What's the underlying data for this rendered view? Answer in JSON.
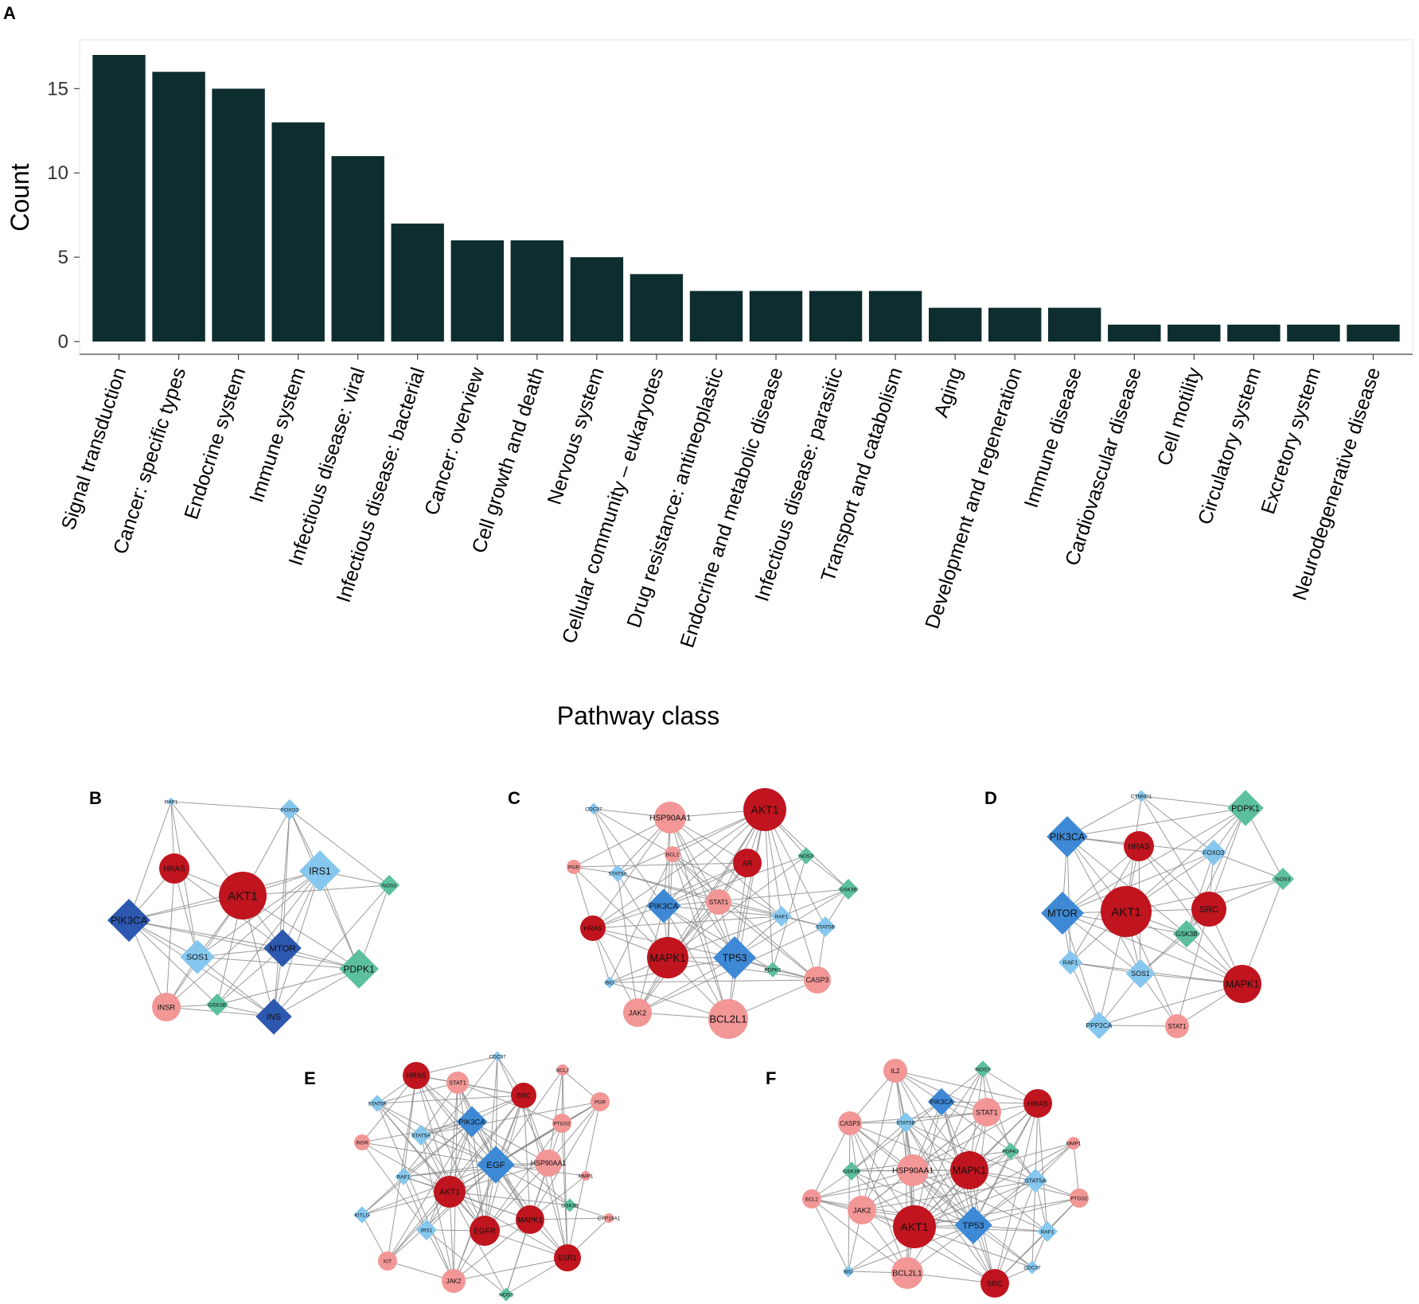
{
  "chart_data": {
    "type": "bar",
    "panel_label": "A",
    "xlabel": "Pathway class",
    "ylabel": "Count",
    "ylim": [
      0,
      17.9
    ],
    "yticks": [
      0,
      5,
      10,
      15
    ],
    "bar_color": "#0d2d2f",
    "categories": [
      "Signal transduction",
      "Cancer: specific types",
      "Endocrine system",
      "Immune system",
      "Infectious disease: viral",
      "Infectious disease: bacterial",
      "Cancer: overview",
      "Cell growth and death",
      "Nervous system",
      "Cellular community – eukaryotes",
      "Drug resistance: antineoplastic",
      "Endocrine and metabolic disease",
      "Infectious disease: parasitic",
      "Transport and catabolism",
      "Aging",
      "Development and regeneration",
      "Immune disease",
      "Cardiovascular disease",
      "Cell motility",
      "Circulatory system",
      "Excretory system",
      "Neurodegenerative disease"
    ],
    "values": [
      17,
      16,
      15,
      13,
      11,
      7,
      6,
      6,
      5,
      4,
      3,
      3,
      3,
      3,
      2,
      2,
      2,
      1,
      1,
      1,
      1,
      1
    ]
  },
  "colors": {
    "dark_red": "#c0141e",
    "light_red": "#f29696",
    "dark_blue": "#2d58b0",
    "mid_blue": "#3d89d6",
    "light_blue": "#85c7ee",
    "green": "#5cc09e",
    "edge": "#8a8a8a"
  },
  "networks": [
    {
      "label": "B",
      "nodes": [
        {
          "id": "RAF1",
          "shape": "diamond",
          "color": "light_blue",
          "size": 5
        },
        {
          "id": "FOXO3",
          "shape": "diamond",
          "color": "light_blue",
          "size": 12
        },
        {
          "id": "HRAS",
          "shape": "circle",
          "color": "dark_red",
          "size": 19
        },
        {
          "id": "AKT1",
          "shape": "circle",
          "color": "dark_red",
          "size": 30
        },
        {
          "id": "IRS1",
          "shape": "diamond",
          "color": "light_blue",
          "size": 24
        },
        {
          "id": "NOS3",
          "shape": "diamond",
          "color": "green",
          "size": 12
        },
        {
          "id": "PIK3CA",
          "shape": "diamond",
          "color": "dark_blue",
          "size": 25
        },
        {
          "id": "SOS1",
          "shape": "diamond",
          "color": "light_blue",
          "size": 20
        },
        {
          "id": "MTOR",
          "shape": "diamond",
          "color": "dark_blue",
          "size": 22
        },
        {
          "id": "PDPK1",
          "shape": "diamond",
          "color": "green",
          "size": 23
        },
        {
          "id": "INSR",
          "shape": "circle",
          "color": "light_red",
          "size": 18
        },
        {
          "id": "GSK3B",
          "shape": "diamond",
          "color": "green",
          "size": 13
        },
        {
          "id": "INS",
          "shape": "diamond",
          "color": "dark_blue",
          "size": 21
        }
      ]
    },
    {
      "label": "C",
      "nodes": [
        {
          "id": "CDC37",
          "shape": "diamond",
          "color": "light_blue",
          "size": 7
        },
        {
          "id": "HSP90AA1",
          "shape": "circle",
          "color": "light_red",
          "size": 20
        },
        {
          "id": "AKT1",
          "shape": "circle",
          "color": "dark_red",
          "size": 27
        },
        {
          "id": "BCL2",
          "shape": "circle",
          "color": "light_red",
          "size": 10
        },
        {
          "id": "AR",
          "shape": "circle",
          "color": "dark_red",
          "size": 18
        },
        {
          "id": "NOS3",
          "shape": "diamond",
          "color": "green",
          "size": 10
        },
        {
          "id": "PGR",
          "shape": "circle",
          "color": "light_red",
          "size": 9
        },
        {
          "id": "STAT5A",
          "shape": "diamond",
          "color": "light_blue",
          "size": 10
        },
        {
          "id": "GSK3B",
          "shape": "diamond",
          "color": "green",
          "size": 12
        },
        {
          "id": "PIK3CA",
          "shape": "diamond",
          "color": "mid_blue",
          "size": 20
        },
        {
          "id": "STAT1",
          "shape": "circle",
          "color": "light_red",
          "size": 16
        },
        {
          "id": "RAF1",
          "shape": "diamond",
          "color": "light_blue",
          "size": 12
        },
        {
          "id": "STAT5B",
          "shape": "diamond",
          "color": "light_blue",
          "size": 12
        },
        {
          "id": "HRAS",
          "shape": "circle",
          "color": "dark_red",
          "size": 16
        },
        {
          "id": "MAPK1",
          "shape": "circle",
          "color": "dark_red",
          "size": 26
        },
        {
          "id": "TP53",
          "shape": "diamond",
          "color": "mid_blue",
          "size": 25
        },
        {
          "id": "PDPK1",
          "shape": "diamond",
          "color": "green",
          "size": 9
        },
        {
          "id": "BID",
          "shape": "diamond",
          "color": "light_blue",
          "size": 7
        },
        {
          "id": "CASP3",
          "shape": "circle",
          "color": "light_red",
          "size": 17
        },
        {
          "id": "JAK2",
          "shape": "circle",
          "color": "light_red",
          "size": 18
        },
        {
          "id": "BCL2L1",
          "shape": "circle",
          "color": "light_red",
          "size": 25
        }
      ]
    },
    {
      "label": "D",
      "nodes": [
        {
          "id": "CTNND1",
          "shape": "diamond",
          "color": "light_blue",
          "size": 7
        },
        {
          "id": "PDPK1",
          "shape": "diamond",
          "color": "green",
          "size": 21
        },
        {
          "id": "PIK3CA",
          "shape": "diamond",
          "color": "mid_blue",
          "size": 24
        },
        {
          "id": "HRAS",
          "shape": "circle",
          "color": "dark_red",
          "size": 19
        },
        {
          "id": "FOXO3",
          "shape": "diamond",
          "color": "light_blue",
          "size": 15
        },
        {
          "id": "NOS3",
          "shape": "diamond",
          "color": "green",
          "size": 13
        },
        {
          "id": "MTOR",
          "shape": "diamond",
          "color": "mid_blue",
          "size": 25
        },
        {
          "id": "AKT1",
          "shape": "circle",
          "color": "dark_red",
          "size": 32
        },
        {
          "id": "SRC",
          "shape": "circle",
          "color": "dark_red",
          "size": 22
        },
        {
          "id": "GSK3B",
          "shape": "diamond",
          "color": "green",
          "size": 16
        },
        {
          "id": "RAF1",
          "shape": "diamond",
          "color": "light_blue",
          "size": 14
        },
        {
          "id": "SOS1",
          "shape": "diamond",
          "color": "light_blue",
          "size": 17
        },
        {
          "id": "MAPK1",
          "shape": "circle",
          "color": "dark_red",
          "size": 24
        },
        {
          "id": "PPP2CA",
          "shape": "diamond",
          "color": "light_blue",
          "size": 16
        },
        {
          "id": "STAT1",
          "shape": "circle",
          "color": "light_red",
          "size": 15
        }
      ]
    },
    {
      "label": "E",
      "nodes": [
        {
          "id": "CDC37",
          "shape": "diamond",
          "color": "light_blue",
          "size": 6
        },
        {
          "id": "HRAS",
          "shape": "circle",
          "color": "dark_red",
          "size": 17
        },
        {
          "id": "STAT1",
          "shape": "circle",
          "color": "light_red",
          "size": 14
        },
        {
          "id": "SRC",
          "shape": "circle",
          "color": "dark_red",
          "size": 16
        },
        {
          "id": "BCL2",
          "shape": "circle",
          "color": "light_red",
          "size": 7
        },
        {
          "id": "STAT5B",
          "shape": "diamond",
          "color": "light_blue",
          "size": 10
        },
        {
          "id": "PGR",
          "shape": "circle",
          "color": "light_red",
          "size": 12
        },
        {
          "id": "STAT5A",
          "shape": "diamond",
          "color": "light_blue",
          "size": 12
        },
        {
          "id": "PIK3CA",
          "shape": "diamond",
          "color": "mid_blue",
          "size": 18
        },
        {
          "id": "PTGS2",
          "shape": "circle",
          "color": "light_red",
          "size": 12
        },
        {
          "id": "INSR",
          "shape": "circle",
          "color": "light_red",
          "size": 10
        },
        {
          "id": "EGF",
          "shape": "diamond",
          "color": "mid_blue",
          "size": 22
        },
        {
          "id": "HSP90AA1",
          "shape": "circle",
          "color": "light_red",
          "size": 17
        },
        {
          "id": "MMP1",
          "shape": "circle",
          "color": "light_red",
          "size": 6
        },
        {
          "id": "RAF1",
          "shape": "diamond",
          "color": "light_blue",
          "size": 10
        },
        {
          "id": "AKT1",
          "shape": "circle",
          "color": "dark_red",
          "size": 20
        },
        {
          "id": "GSK3B",
          "shape": "diamond",
          "color": "green",
          "size": 8
        },
        {
          "id": "CYP19A1",
          "shape": "circle",
          "color": "light_red",
          "size": 6
        },
        {
          "id": "KITLG",
          "shape": "diamond",
          "color": "light_blue",
          "size": 10
        },
        {
          "id": "IRS1",
          "shape": "diamond",
          "color": "light_blue",
          "size": 12
        },
        {
          "id": "EGFR",
          "shape": "circle",
          "color": "dark_red",
          "size": 19
        },
        {
          "id": "MAPK1",
          "shape": "circle",
          "color": "dark_red",
          "size": 18
        },
        {
          "id": "ESR1",
          "shape": "circle",
          "color": "dark_red",
          "size": 17
        },
        {
          "id": "KIT",
          "shape": "circle",
          "color": "light_red",
          "size": 12
        },
        {
          "id": "JAK2",
          "shape": "circle",
          "color": "light_red",
          "size": 15
        },
        {
          "id": "NOS3",
          "shape": "diamond",
          "color": "green",
          "size": 8
        }
      ]
    },
    {
      "label": "F",
      "nodes": [
        {
          "id": "IL2",
          "shape": "circle",
          "color": "light_red",
          "size": 15
        },
        {
          "id": "NOS3",
          "shape": "diamond",
          "color": "green",
          "size": 10
        },
        {
          "id": "PIK3CA",
          "shape": "diamond",
          "color": "mid_blue",
          "size": 16
        },
        {
          "id": "HRAS",
          "shape": "circle",
          "color": "dark_red",
          "size": 18
        },
        {
          "id": "STAT1",
          "shape": "circle",
          "color": "light_red",
          "size": 18
        },
        {
          "id": "CASP3",
          "shape": "circle",
          "color": "light_red",
          "size": 15
        },
        {
          "id": "STAT5B",
          "shape": "diamond",
          "color": "light_blue",
          "size": 12
        },
        {
          "id": "PDPK1",
          "shape": "diamond",
          "color": "green",
          "size": 10
        },
        {
          "id": "MMP1",
          "shape": "circle",
          "color": "light_red",
          "size": 8
        },
        {
          "id": "HSP90AA1",
          "shape": "circle",
          "color": "light_red",
          "size": 20
        },
        {
          "id": "MAPK1",
          "shape": "circle",
          "color": "dark_red",
          "size": 24
        },
        {
          "id": "GSK3B",
          "shape": "diamond",
          "color": "green",
          "size": 11
        },
        {
          "id": "STAT5A",
          "shape": "diamond",
          "color": "light_blue",
          "size": 14
        },
        {
          "id": "BCL2",
          "shape": "circle",
          "color": "light_red",
          "size": 12
        },
        {
          "id": "JAK2",
          "shape": "circle",
          "color": "light_red",
          "size": 18
        },
        {
          "id": "PTGS2",
          "shape": "circle",
          "color": "light_red",
          "size": 12
        },
        {
          "id": "AKT1",
          "shape": "circle",
          "color": "dark_red",
          "size": 27
        },
        {
          "id": "TP53",
          "shape": "diamond",
          "color": "mid_blue",
          "size": 22
        },
        {
          "id": "RAF1",
          "shape": "diamond",
          "color": "light_blue",
          "size": 12
        },
        {
          "id": "BID",
          "shape": "diamond",
          "color": "light_blue",
          "size": 7
        },
        {
          "id": "BCL2L1",
          "shape": "circle",
          "color": "light_red",
          "size": 20
        },
        {
          "id": "CDC37",
          "shape": "diamond",
          "color": "light_blue",
          "size": 8
        },
        {
          "id": "SRC",
          "shape": "circle",
          "color": "dark_red",
          "size": 18
        }
      ]
    }
  ]
}
